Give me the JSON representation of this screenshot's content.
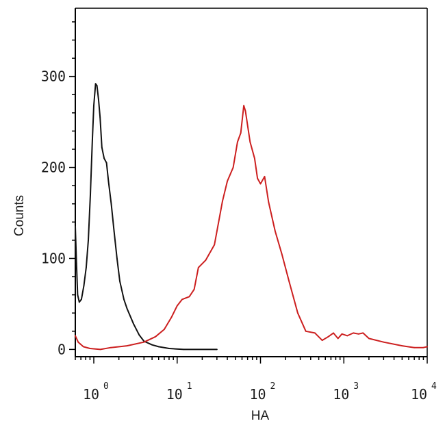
{
  "chart_data": {
    "type": "line",
    "title": "",
    "xlabel": "HA",
    "ylabel": "Counts",
    "x_scale": "log",
    "xlim": [
      0.6,
      10000
    ],
    "ylim": [
      -8,
      375
    ],
    "grid": false,
    "x_ticks": [
      {
        "value": 1,
        "base": "10",
        "exp": "0"
      },
      {
        "value": 10,
        "base": "10",
        "exp": "1"
      },
      {
        "value": 100,
        "base": "10",
        "exp": "2"
      },
      {
        "value": 1000,
        "base": "10",
        "exp": "3"
      },
      {
        "value": 10000,
        "base": "10",
        "exp": "4"
      }
    ],
    "y_ticks": [
      {
        "value": 0,
        "label": "0"
      },
      {
        "value": 100,
        "label": "100"
      },
      {
        "value": 200,
        "label": "200"
      },
      {
        "value": 300,
        "label": "300"
      }
    ],
    "series": [
      {
        "color": "#111111",
        "points": [
          [
            0.6,
            135
          ],
          [
            0.62,
            95
          ],
          [
            0.64,
            60
          ],
          [
            0.67,
            52
          ],
          [
            0.71,
            55
          ],
          [
            0.76,
            70
          ],
          [
            0.81,
            90
          ],
          [
            0.86,
            120
          ],
          [
            0.91,
            170
          ],
          [
            0.96,
            230
          ],
          [
            1.0,
            268
          ],
          [
            1.05,
            292
          ],
          [
            1.09,
            290
          ],
          [
            1.14,
            275
          ],
          [
            1.19,
            255
          ],
          [
            1.25,
            222
          ],
          [
            1.33,
            210
          ],
          [
            1.42,
            205
          ],
          [
            1.5,
            185
          ],
          [
            1.62,
            160
          ],
          [
            1.75,
            130
          ],
          [
            1.9,
            100
          ],
          [
            2.05,
            75
          ],
          [
            2.3,
            55
          ],
          [
            2.5,
            45
          ],
          [
            3.0,
            28
          ],
          [
            3.5,
            16
          ],
          [
            4.0,
            9
          ],
          [
            5.0,
            5
          ],
          [
            6.0,
            3
          ],
          [
            8.0,
            1
          ],
          [
            12.0,
            0
          ],
          [
            30.0,
            0
          ]
        ]
      },
      {
        "color": "#cc1f1f",
        "points": [
          [
            0.6,
            15
          ],
          [
            0.65,
            8
          ],
          [
            0.75,
            3
          ],
          [
            0.9,
            1
          ],
          [
            1.2,
            0
          ],
          [
            1.6,
            2
          ],
          [
            2.5,
            4
          ],
          [
            4.0,
            8
          ],
          [
            5.5,
            14
          ],
          [
            7.0,
            22
          ],
          [
            8.5,
            35
          ],
          [
            10.0,
            48
          ],
          [
            11.5,
            55
          ],
          [
            14.0,
            58
          ],
          [
            16.0,
            66
          ],
          [
            18.0,
            90
          ],
          [
            22.0,
            98
          ],
          [
            28.0,
            115
          ],
          [
            35.0,
            163
          ],
          [
            40.0,
            185
          ],
          [
            47.0,
            200
          ],
          [
            53.0,
            228
          ],
          [
            58.0,
            238
          ],
          [
            63.0,
            268
          ],
          [
            66.0,
            262
          ],
          [
            75.0,
            228
          ],
          [
            85.0,
            210
          ],
          [
            92.0,
            188
          ],
          [
            100.0,
            182
          ],
          [
            112.0,
            190
          ],
          [
            125.0,
            162
          ],
          [
            150.0,
            130
          ],
          [
            180.0,
            105
          ],
          [
            220.0,
            75
          ],
          [
            280.0,
            40
          ],
          [
            350.0,
            20
          ],
          [
            450.0,
            18
          ],
          [
            550.0,
            10
          ],
          [
            650.0,
            14
          ],
          [
            750.0,
            18
          ],
          [
            850.0,
            12
          ],
          [
            950.0,
            17
          ],
          [
            1100.0,
            15
          ],
          [
            1300.0,
            18
          ],
          [
            1500.0,
            17
          ],
          [
            1700.0,
            18
          ],
          [
            2000.0,
            12
          ],
          [
            3000.0,
            8
          ],
          [
            5000.0,
            4
          ],
          [
            7000.0,
            2
          ],
          [
            9000.0,
            2
          ],
          [
            10000.0,
            3
          ]
        ]
      }
    ]
  }
}
